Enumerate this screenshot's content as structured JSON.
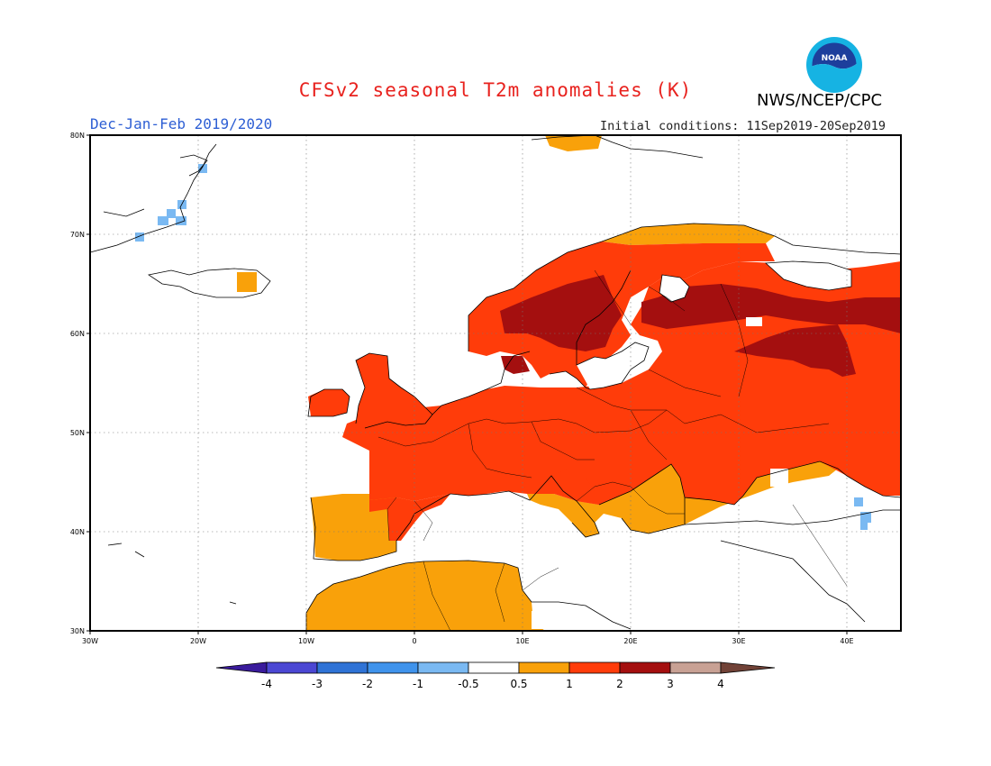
{
  "header": {
    "title": "CFSv2 seasonal T2m anomalies (K)",
    "agency": "NWS/NCEP/CPC",
    "season": "Dec-Jan-Feb 2019/2020",
    "init_conditions": "Initial conditions: 11Sep2019-20Sep2019",
    "logo_text": "NOAA"
  },
  "axes": {
    "lon_labels": [
      "30W",
      "20W",
      "10W",
      "0",
      "10E",
      "20E",
      "30E",
      "40E"
    ],
    "lat_labels": [
      "80N",
      "70N",
      "60N",
      "50N",
      "40N",
      "30N"
    ]
  },
  "colorbar": {
    "labels": [
      "-4",
      "-3",
      "-2",
      "-1",
      "-0.5",
      "0.5",
      "1",
      "2",
      "3",
      "4"
    ],
    "colors": [
      "#3a1b9c",
      "#4b47d3",
      "#2f73d6",
      "#3f93ec",
      "#7ab9f2",
      "#ffffff",
      "#f9a10a",
      "#ff3c0a",
      "#a40f0f",
      "#c8a194",
      "#714237"
    ]
  },
  "legend_colors": {
    "pos_0_5_1": "#f9a10a",
    "pos_1_2": "#ff3c0a",
    "pos_2_3": "#a40f0f",
    "neg_1_0_5": "#7ab9f2"
  }
}
